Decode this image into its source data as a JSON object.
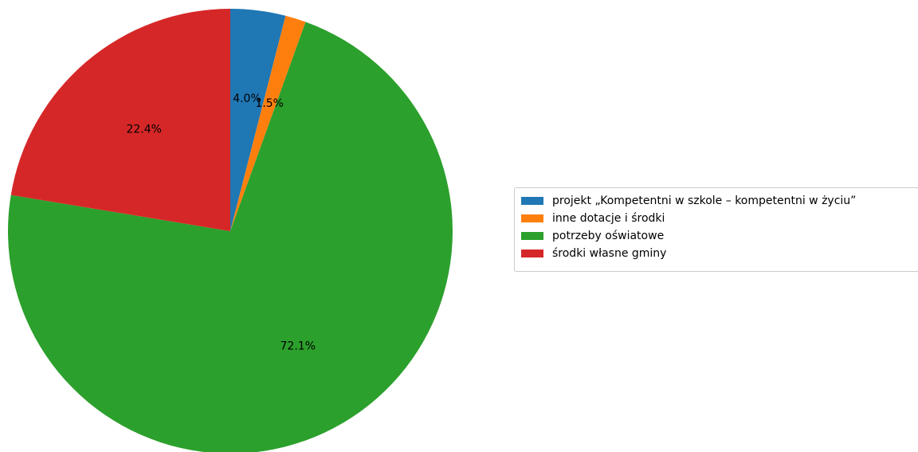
{
  "chart_data": {
    "type": "pie",
    "title": "",
    "start_angle_deg": 90,
    "direction": "clockwise",
    "legend_position": "right",
    "slices": [
      {
        "label": "projekt „Kompetentni w szkole – kompetentni w życiu”",
        "value": 4.0,
        "pct_label": "4.0%",
        "color": "#1f77b4"
      },
      {
        "label": "inne dotacje i środki",
        "value": 1.5,
        "pct_label": "1.5%",
        "color": "#ff7f0e"
      },
      {
        "label": "potrzeby oświatowe",
        "value": 72.1,
        "pct_label": "72.1%",
        "color": "#2ca02c"
      },
      {
        "label": "środki własne gminy",
        "value": 22.4,
        "pct_label": "22.4%",
        "color": "#d62728"
      }
    ]
  }
}
